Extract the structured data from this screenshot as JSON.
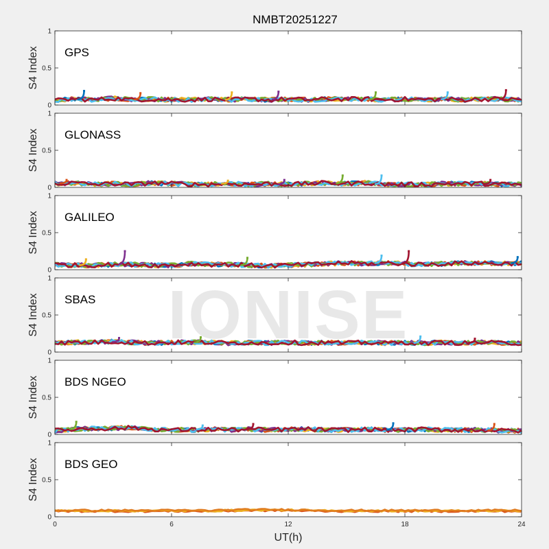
{
  "chart_data": {
    "type": "scatter",
    "title": "NMBT20251227",
    "xlabel": "UT(h)",
    "ylabel": "S4 Index",
    "xlim": [
      0,
      24
    ],
    "ylim": [
      0,
      1
    ],
    "x_ticks": [
      0,
      6,
      12,
      18,
      24
    ],
    "y_ticks": [
      0,
      0.5,
      1
    ],
    "grid": false,
    "watermark": "IONISE",
    "series_colors": [
      "#0072bd",
      "#d95319",
      "#edb120",
      "#7e2f8e",
      "#77ac30",
      "#4dbeee",
      "#a2142f"
    ],
    "panels": [
      {
        "label": "GPS",
        "baseline": [
          [
            0,
            0.06
          ],
          [
            1,
            0.08
          ],
          [
            2,
            0.07
          ],
          [
            3,
            0.09
          ],
          [
            4,
            0.07
          ],
          [
            5,
            0.08
          ],
          [
            6,
            0.07
          ],
          [
            7,
            0.07
          ],
          [
            8,
            0.08
          ],
          [
            9,
            0.07
          ],
          [
            10,
            0.08
          ],
          [
            11,
            0.07
          ],
          [
            12,
            0.08
          ],
          [
            13,
            0.07
          ],
          [
            14,
            0.08
          ],
          [
            15,
            0.08
          ],
          [
            16,
            0.08
          ],
          [
            17,
            0.07
          ],
          [
            18,
            0.08
          ],
          [
            19,
            0.07
          ],
          [
            20,
            0.08
          ],
          [
            21,
            0.07
          ],
          [
            22,
            0.08
          ],
          [
            23,
            0.08
          ],
          [
            24,
            0.07
          ]
        ],
        "peaks": [
          [
            1.5,
            0.19
          ],
          [
            4.4,
            0.16
          ],
          [
            9.1,
            0.17
          ],
          [
            11.5,
            0.18
          ],
          [
            16.5,
            0.17
          ],
          [
            20.2,
            0.17
          ],
          [
            23.2,
            0.2
          ]
        ]
      },
      {
        "label": "GLONASS",
        "baseline": [
          [
            0,
            0.05
          ],
          [
            1,
            0.06
          ],
          [
            2,
            0.04
          ],
          [
            3,
            0.05
          ],
          [
            4,
            0.04
          ],
          [
            5,
            0.06
          ],
          [
            6,
            0.05
          ],
          [
            7,
            0.04
          ],
          [
            8,
            0.04
          ],
          [
            9,
            0.05
          ],
          [
            10,
            0.04
          ],
          [
            11,
            0.05
          ],
          [
            12,
            0.04
          ],
          [
            13,
            0.05
          ],
          [
            14,
            0.06
          ],
          [
            15,
            0.05
          ],
          [
            16,
            0.06
          ],
          [
            17,
            0.04
          ],
          [
            18,
            0.04
          ],
          [
            19,
            0.04
          ],
          [
            20,
            0.05
          ],
          [
            21,
            0.05
          ],
          [
            22,
            0.05
          ],
          [
            23,
            0.04
          ],
          [
            24,
            0.04
          ]
        ],
        "peaks": [
          [
            0.6,
            0.1
          ],
          [
            8.9,
            0.09
          ],
          [
            11.8,
            0.1
          ],
          [
            14.8,
            0.16
          ],
          [
            16.8,
            0.16
          ],
          [
            22.4,
            0.1
          ]
        ]
      },
      {
        "label": "GALILEO",
        "baseline": [
          [
            0,
            0.07
          ],
          [
            1,
            0.06
          ],
          [
            2,
            0.06
          ],
          [
            3,
            0.07
          ],
          [
            4,
            0.07
          ],
          [
            5,
            0.06
          ],
          [
            6,
            0.06
          ],
          [
            7,
            0.08
          ],
          [
            8,
            0.07
          ],
          [
            9,
            0.07
          ],
          [
            10,
            0.06
          ],
          [
            11,
            0.05
          ],
          [
            12,
            0.06
          ],
          [
            13,
            0.07
          ],
          [
            14,
            0.08
          ],
          [
            15,
            0.09
          ],
          [
            16,
            0.08
          ],
          [
            17,
            0.09
          ],
          [
            18,
            0.08
          ],
          [
            19,
            0.07
          ],
          [
            20,
            0.08
          ],
          [
            21,
            0.09
          ],
          [
            22,
            0.09
          ],
          [
            23,
            0.08
          ],
          [
            24,
            0.09
          ]
        ],
        "peaks": [
          [
            1.6,
            0.14
          ],
          [
            3.6,
            0.25
          ],
          [
            9.9,
            0.16
          ],
          [
            16.8,
            0.19
          ],
          [
            18.2,
            0.25
          ],
          [
            23.8,
            0.17
          ]
        ]
      },
      {
        "label": "SBAS",
        "baseline": [
          [
            0,
            0.12
          ],
          [
            1,
            0.13
          ],
          [
            2,
            0.13
          ],
          [
            3,
            0.14
          ],
          [
            4,
            0.13
          ],
          [
            5,
            0.12
          ],
          [
            6,
            0.13
          ],
          [
            7,
            0.13
          ],
          [
            8,
            0.13
          ],
          [
            9,
            0.12
          ],
          [
            10,
            0.13
          ],
          [
            11,
            0.12
          ],
          [
            12,
            0.13
          ],
          [
            13,
            0.12
          ],
          [
            14,
            0.13
          ],
          [
            15,
            0.12
          ],
          [
            16,
            0.13
          ],
          [
            17,
            0.12
          ],
          [
            18,
            0.13
          ],
          [
            19,
            0.12
          ],
          [
            20,
            0.13
          ],
          [
            21,
            0.12
          ],
          [
            22,
            0.13
          ],
          [
            23,
            0.12
          ],
          [
            24,
            0.12
          ]
        ],
        "peaks": [
          [
            3.3,
            0.19
          ],
          [
            7.5,
            0.2
          ],
          [
            18.8,
            0.21
          ],
          [
            21.6,
            0.18
          ]
        ]
      },
      {
        "label": "BDS NGEO",
        "baseline": [
          [
            0,
            0.05
          ],
          [
            1,
            0.07
          ],
          [
            2,
            0.08
          ],
          [
            3,
            0.08
          ],
          [
            4,
            0.09
          ],
          [
            5,
            0.07
          ],
          [
            6,
            0.06
          ],
          [
            7,
            0.06
          ],
          [
            8,
            0.07
          ],
          [
            9,
            0.06
          ],
          [
            10,
            0.07
          ],
          [
            11,
            0.06
          ],
          [
            12,
            0.07
          ],
          [
            13,
            0.07
          ],
          [
            14,
            0.06
          ],
          [
            15,
            0.06
          ],
          [
            16,
            0.07
          ],
          [
            17,
            0.06
          ],
          [
            18,
            0.06
          ],
          [
            19,
            0.07
          ],
          [
            20,
            0.06
          ],
          [
            21,
            0.06
          ],
          [
            22,
            0.06
          ],
          [
            23,
            0.05
          ],
          [
            24,
            0.05
          ]
        ],
        "peaks": [
          [
            1.1,
            0.17
          ],
          [
            7.6,
            0.12
          ],
          [
            10.2,
            0.14
          ],
          [
            17.4,
            0.15
          ],
          [
            22.6,
            0.14
          ]
        ]
      },
      {
        "label": "BDS GEO",
        "baseline": [
          [
            0,
            0.08
          ],
          [
            2,
            0.08
          ],
          [
            4,
            0.08
          ],
          [
            6,
            0.08
          ],
          [
            8,
            0.08
          ],
          [
            10,
            0.09
          ],
          [
            12,
            0.09
          ],
          [
            14,
            0.08
          ],
          [
            16,
            0.08
          ],
          [
            18,
            0.08
          ],
          [
            20,
            0.08
          ],
          [
            22,
            0.08
          ],
          [
            24,
            0.08
          ]
        ],
        "peaks": []
      }
    ]
  }
}
